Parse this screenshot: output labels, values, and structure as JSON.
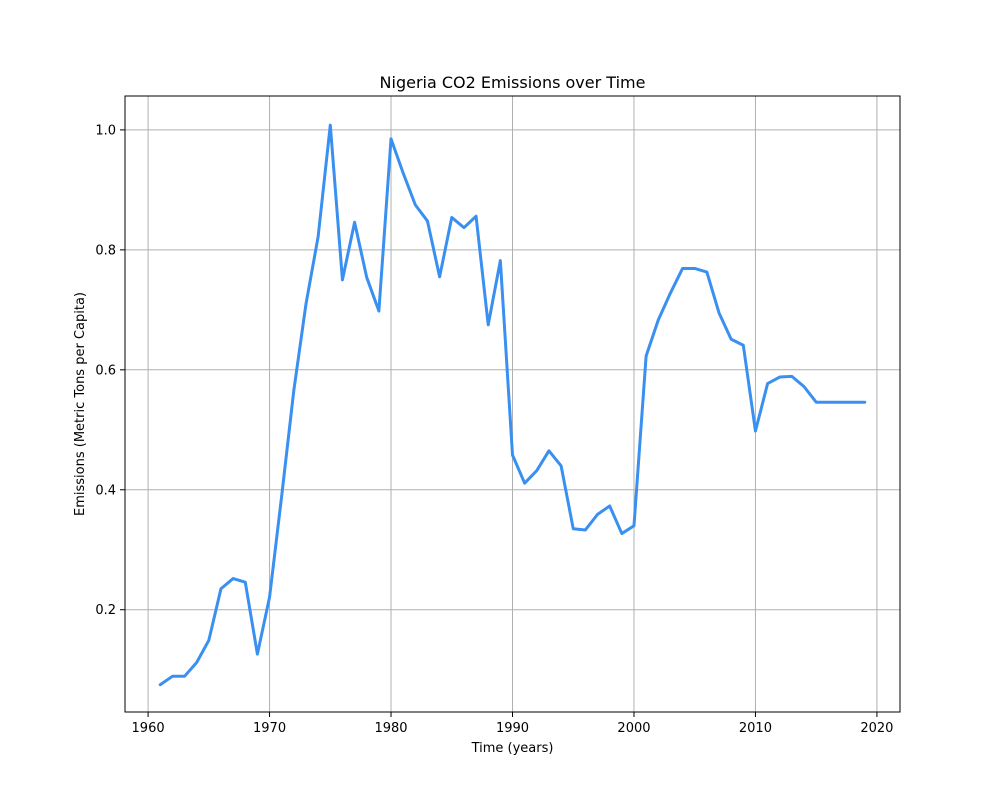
{
  "chart_data": {
    "type": "line",
    "title": "Nigeria CO2 Emissions over Time",
    "xlabel": "Time (years)",
    "ylabel": "Emissions (Metric Tons per Capita)",
    "xlim": [
      1958.1,
      2021.9
    ],
    "ylim": [
      0.0295,
      1.0565
    ],
    "grid": true,
    "x_ticks": [
      1960,
      1970,
      1980,
      1990,
      2000,
      2010,
      2020
    ],
    "y_ticks": [
      0.2,
      0.4,
      0.6,
      0.8,
      1.0
    ],
    "y_tick_labels": [
      "0.2",
      "0.4",
      "0.6",
      "0.8",
      "1.0"
    ],
    "series": [
      {
        "color": "#3a90f0",
        "x": [
          1961,
          1962,
          1963,
          1964,
          1965,
          1966,
          1967,
          1968,
          1969,
          1970,
          1971,
          1972,
          1973,
          1974,
          1975,
          1976,
          1977,
          1978,
          1979,
          1980,
          1981,
          1982,
          1983,
          1984,
          1985,
          1986,
          1987,
          1988,
          1989,
          1990,
          1991,
          1992,
          1993,
          1994,
          1995,
          1996,
          1997,
          1998,
          1999,
          2000,
          2001,
          2002,
          2003,
          2004,
          2005,
          2006,
          2007,
          2008,
          2009,
          2010,
          2011,
          2012,
          2013,
          2014,
          2015,
          2016,
          2017,
          2018,
          2019
        ],
        "values": [
          0.075,
          0.089,
          0.089,
          0.112,
          0.149,
          0.235,
          0.252,
          0.246,
          0.126,
          0.221,
          0.39,
          0.566,
          0.71,
          0.822,
          1.008,
          0.75,
          0.846,
          0.754,
          0.698,
          0.985,
          0.928,
          0.875,
          0.848,
          0.755,
          0.854,
          0.837,
          0.856,
          0.675,
          0.782,
          0.458,
          0.411,
          0.432,
          0.465,
          0.44,
          0.335,
          0.333,
          0.359,
          0.373,
          0.327,
          0.34,
          0.623,
          0.683,
          0.728,
          0.769,
          0.769,
          0.763,
          0.695,
          0.651,
          0.641,
          0.498,
          0.577,
          0.588,
          0.589,
          0.572,
          0.546,
          0.546,
          0.546,
          0.546,
          0.546
        ]
      }
    ]
  }
}
